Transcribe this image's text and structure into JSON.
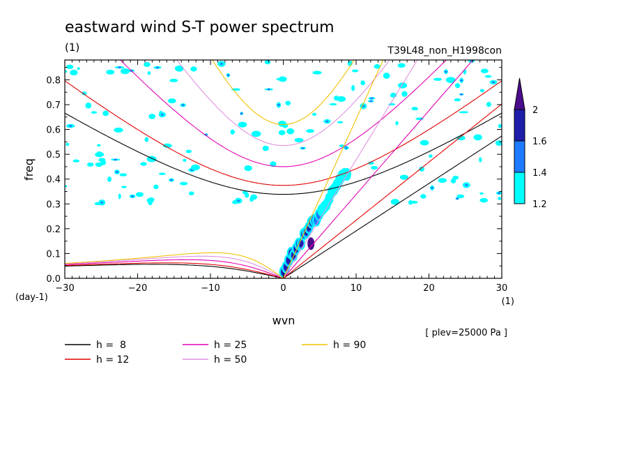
{
  "chart_data": {
    "type": "heatmap",
    "title": "eastward wind S-T power spectrum",
    "subtitle_left": "(1)",
    "subtitle_right": "T39L48_non_H1998con",
    "xlabel": "wvn",
    "ylabel": "freq",
    "x_unit": "(1)",
    "y_unit": "(day-1)",
    "xlim": [
      -30,
      30
    ],
    "ylim": [
      0,
      0.88
    ],
    "x_ticks": [
      -30,
      -20,
      -10,
      0,
      10,
      20,
      30
    ],
    "x_tick_labels": [
      "-30",
      "-20",
      "-10",
      "0",
      "10",
      "20",
      "30"
    ],
    "y_ticks": [
      0,
      0.1,
      0.2,
      0.3,
      0.4,
      0.5,
      0.6,
      0.7,
      0.8
    ],
    "y_tick_labels": [
      "0.0",
      "0.1",
      "0.2",
      "0.3",
      "0.4",
      "0.5",
      "0.6",
      "0.7",
      "0.8"
    ],
    "annotation": "[ plev=25000 Pa ]",
    "colorbar": {
      "levels": [
        1.2,
        1.4,
        1.6,
        2
      ],
      "labels": [
        "1.2",
        "1.4",
        "1.6",
        "2"
      ],
      "colors": [
        "#00ffff",
        "#1e7bff",
        "#1e1eaa",
        "#4b0c8c"
      ]
    },
    "dispersion_curves": [
      {
        "label": "h =  8",
        "h": 8,
        "color": "#000000"
      },
      {
        "label": "h = 12",
        "h": 12,
        "color": "#e00000"
      },
      {
        "label": "h = 25",
        "h": 25,
        "color": "#e000b0"
      },
      {
        "label": "h = 50",
        "h": 50,
        "color": "#e090e0"
      },
      {
        "label": "h = 90",
        "h": 90,
        "color": "#f0c000"
      }
    ]
  }
}
